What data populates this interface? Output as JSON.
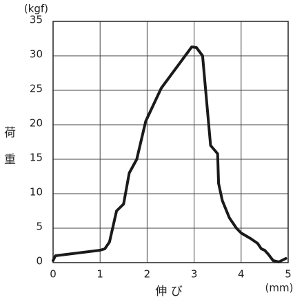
{
  "chart_data": {
    "type": "line",
    "ylabel": "荷重",
    "xlabel": "伸 び",
    "yunit": "(kgf)",
    "xunit": "(mm)",
    "x": [
      0,
      0.05,
      1.0,
      1.1,
      1.2,
      1.35,
      1.5,
      1.62,
      1.78,
      1.97,
      2.3,
      2.95,
      3.05,
      3.18,
      3.35,
      3.5,
      3.52,
      3.6,
      3.75,
      3.9,
      4.0,
      4.2,
      4.35,
      4.43,
      4.5,
      4.58,
      4.68,
      4.8,
      4.95
    ],
    "series": [
      {
        "name": "荷重",
        "color": "#1a1a1a",
        "values": [
          0.3,
          1.0,
          1.8,
          2.0,
          3.0,
          7.5,
          8.5,
          13,
          15,
          20.5,
          25.3,
          31.3,
          31.2,
          30,
          17,
          15.8,
          11.5,
          9,
          6.5,
          5,
          4.3,
          3.5,
          2.8,
          2.0,
          1.8,
          1.2,
          0.3,
          0.1,
          0.6
        ]
      }
    ],
    "xlim": [
      0,
      5
    ],
    "xticks": [
      0,
      1,
      2,
      3,
      4,
      5
    ],
    "ylim": [
      0,
      35
    ],
    "yticks": [
      0,
      5,
      10,
      15,
      20,
      25,
      30,
      35
    ],
    "grid": true
  }
}
